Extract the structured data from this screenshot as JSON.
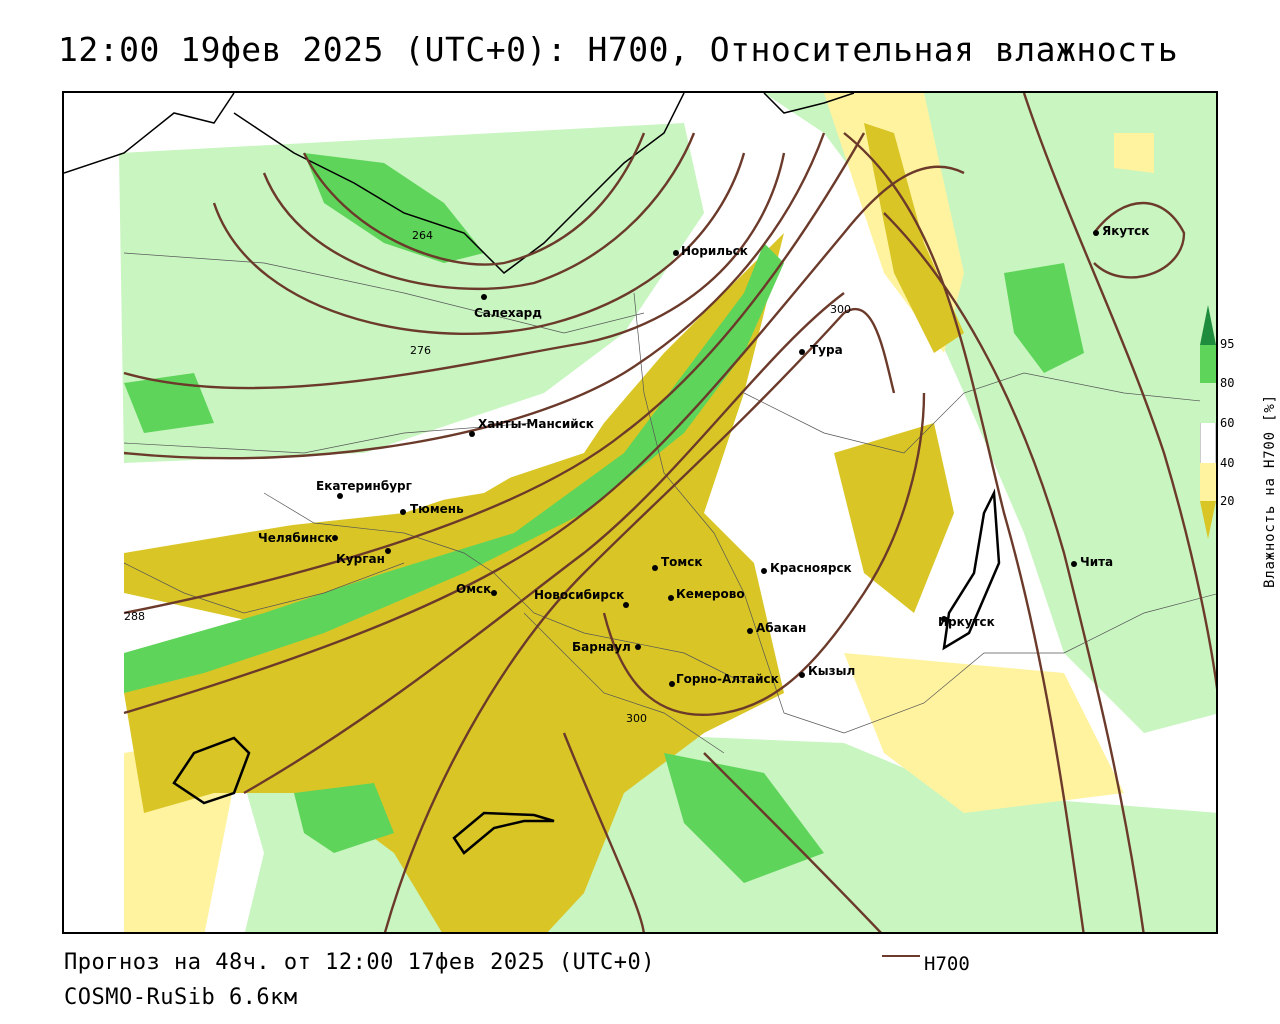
{
  "title": "12:00 19фев 2025 (UTC+0): H700, Относительная влажность",
  "footer": {
    "forecast": "Прогноз на 48ч. от 12:00 17фев 2025 (UTC+0)",
    "model": "COSMO-RuSib 6.6км"
  },
  "legend": {
    "line_label": "H700",
    "line_color": "#6b3a2a"
  },
  "colorbar": {
    "title": "Влажность на H700 [%]",
    "ticks": [
      "95",
      "80",
      "60",
      "40",
      "20"
    ],
    "colors": {
      "lt20": "#d9c626",
      "c20_40": "#fff3a0",
      "c40_60": "#ffffff",
      "c60_80": "#c8f5c0",
      "c80_95": "#5fd45a",
      "gt95": "#1e8c3c"
    }
  },
  "cities": [
    {
      "name": "Норильск"
    },
    {
      "name": "Салехард"
    },
    {
      "name": "Тура"
    },
    {
      "name": "Якутск"
    },
    {
      "name": "Ханты-Мансийск"
    },
    {
      "name": "Екатеринбург"
    },
    {
      "name": "Тюмень"
    },
    {
      "name": "Челябинск"
    },
    {
      "name": "Курган"
    },
    {
      "name": "Омск"
    },
    {
      "name": "Новосибирск"
    },
    {
      "name": "Томск"
    },
    {
      "name": "Кемерово"
    },
    {
      "name": "Красноярск"
    },
    {
      "name": "Абакан"
    },
    {
      "name": "Барнаул"
    },
    {
      "name": "Горно-Алтайск"
    },
    {
      "name": "Кызыл"
    },
    {
      "name": "Иркутск"
    },
    {
      "name": "Чита"
    }
  ],
  "isohypse_labels": [
    "264",
    "276",
    "288",
    "300",
    "300"
  ]
}
